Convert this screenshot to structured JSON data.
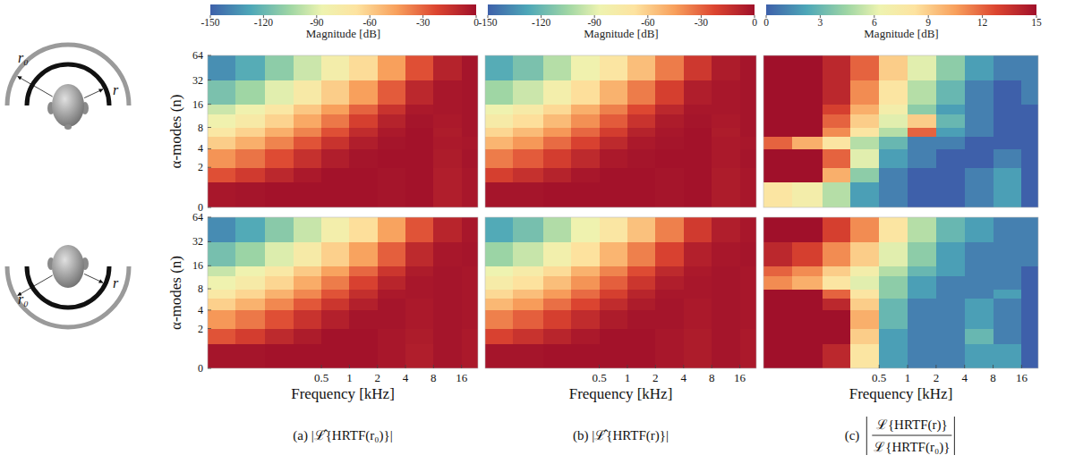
{
  "chart_data": [
    {
      "type": "heatmap",
      "log": true,
      "tick_labels": "y",
      "xlim": [
        0.03,
        24
      ],
      "ylim": [
        0,
        64
      ],
      "yticks": [
        0,
        2,
        4,
        8,
        16,
        32,
        64
      ],
      "ylabel": "α-modes (n)",
      "x_edges": [
        0.03,
        0.06,
        0.125,
        0.25,
        0.5,
        1,
        2,
        4,
        8,
        16,
        24
      ],
      "y_edges": [
        0,
        1,
        2,
        4,
        6,
        8,
        12,
        16,
        32,
        64
      ],
      "cells": [
        [
          -3,
          -2,
          -1,
          -1,
          -1,
          -1,
          -2,
          -1,
          -6,
          -3
        ],
        [
          -25,
          -18,
          -10,
          -4,
          -1,
          -1,
          -2,
          -1,
          -6,
          -3
        ],
        [
          -42,
          -34,
          -24,
          -14,
          -6,
          -2,
          -1,
          -1,
          -5,
          -2
        ],
        [
          -60,
          -50,
          -38,
          -26,
          -15,
          -6,
          -2,
          -1,
          -4,
          -3
        ],
        [
          -72,
          -62,
          -50,
          -38,
          -25,
          -12,
          -4,
          -1,
          -5,
          -2
        ],
        [
          -85,
          -75,
          -62,
          -48,
          -35,
          -20,
          -8,
          -2,
          -4,
          -2
        ],
        [
          -95,
          -85,
          -72,
          -58,
          -45,
          -30,
          -15,
          -4,
          -3,
          -2
        ],
        [
          -115,
          -105,
          -90,
          -75,
          -60,
          -45,
          -28,
          -10,
          -3,
          -2
        ],
        [
          -135,
          -125,
          -110,
          -95,
          -80,
          -65,
          -45,
          -25,
          -8,
          -2
        ]
      ]
    },
    {
      "type": "heatmap",
      "log": true,
      "tick_labels": false,
      "xlim": [
        0.03,
        24
      ],
      "ylim": [
        0,
        64
      ],
      "x_edges": [
        0.03,
        0.06,
        0.125,
        0.25,
        0.5,
        1,
        2,
        4,
        8,
        16,
        24
      ],
      "y_edges": [
        0,
        1,
        2,
        4,
        6,
        8,
        12,
        16,
        32,
        64
      ],
      "cells": [
        [
          -2,
          -2,
          -1,
          -1,
          -1,
          -1,
          -2,
          -1,
          -5,
          -3
        ],
        [
          -20,
          -14,
          -8,
          -3,
          -1,
          -1,
          -2,
          -1,
          -5,
          -3
        ],
        [
          -36,
          -28,
          -19,
          -11,
          -4,
          -2,
          -1,
          -1,
          -4,
          -2
        ],
        [
          -52,
          -43,
          -32,
          -21,
          -11,
          -4,
          -2,
          -1,
          -4,
          -3
        ],
        [
          -63,
          -54,
          -43,
          -31,
          -19,
          -8,
          -3,
          -1,
          -5,
          -2
        ],
        [
          -76,
          -66,
          -54,
          -41,
          -28,
          -15,
          -5,
          -2,
          -4,
          -2
        ],
        [
          -86,
          -76,
          -64,
          -50,
          -37,
          -23,
          -10,
          -3,
          -3,
          -2
        ],
        [
          -105,
          -95,
          -81,
          -66,
          -51,
          -36,
          -20,
          -6,
          -3,
          -2
        ],
        [
          -125,
          -115,
          -100,
          -85,
          -70,
          -55,
          -36,
          -17,
          -5,
          -2
        ]
      ]
    },
    {
      "type": "heatmap",
      "log": true,
      "tick_labels": false,
      "xlim": [
        0.03,
        24
      ],
      "ylim": [
        0,
        64
      ],
      "x_edges": [
        0.03,
        0.06,
        0.125,
        0.25,
        0.5,
        1,
        2,
        4,
        8,
        16,
        24
      ],
      "y_edges": [
        0,
        1,
        2,
        4,
        6,
        8,
        12,
        16,
        32,
        64
      ],
      "cells": [
        [
          8,
          7,
          5,
          2,
          1,
          0,
          0,
          1,
          2,
          0
        ],
        [
          15,
          15,
          10,
          4,
          1,
          0,
          0,
          1,
          2,
          0
        ],
        [
          15,
          15,
          12,
          6,
          2,
          1,
          0,
          0,
          1,
          0
        ],
        [
          12,
          10,
          8,
          5,
          3,
          1,
          1,
          0,
          0,
          0
        ],
        [
          15,
          15,
          11,
          8,
          5,
          12,
          2,
          1,
          0,
          0
        ],
        [
          15,
          15,
          12,
          9,
          6,
          9,
          3,
          1,
          0,
          0
        ],
        [
          15,
          15,
          13,
          10,
          7,
          4,
          2,
          1,
          0,
          0
        ],
        [
          15,
          15,
          14,
          11,
          8,
          5,
          3,
          1,
          0,
          1
        ],
        [
          15,
          15,
          14,
          12,
          9,
          6,
          4,
          2,
          1,
          1
        ]
      ]
    },
    {
      "type": "heatmap",
      "log": true,
      "tick_labels": true,
      "xlim": [
        0.03,
        24
      ],
      "ylim": [
        0,
        64
      ],
      "xticks": [
        0.5,
        1,
        2,
        4,
        8,
        16
      ],
      "yticks": [
        0,
        2,
        4,
        8,
        16,
        32,
        64
      ],
      "xlabel": "Frequency [kHz]",
      "ylabel": "α-modes (n)",
      "x_edges": [
        0.03,
        0.06,
        0.125,
        0.25,
        0.5,
        1,
        2,
        4,
        8,
        16,
        24
      ],
      "y_edges": [
        0,
        1,
        2,
        4,
        6,
        8,
        12,
        16,
        32,
        64
      ],
      "cells": [
        [
          -2,
          -2,
          -1,
          -1,
          -1,
          -1,
          -3,
          -6,
          -2,
          -4
        ],
        [
          -26,
          -19,
          -11,
          -5,
          -1,
          -1,
          -3,
          -5,
          -2,
          -4
        ],
        [
          -43,
          -35,
          -25,
          -15,
          -7,
          -2,
          -2,
          -4,
          -2,
          -3
        ],
        [
          -61,
          -51,
          -39,
          -27,
          -16,
          -7,
          -2,
          -4,
          -2,
          -3
        ],
        [
          -73,
          -63,
          -51,
          -39,
          -26,
          -13,
          -4,
          -3,
          -2,
          -3
        ],
        [
          -86,
          -76,
          -63,
          -49,
          -36,
          -21,
          -9,
          -3,
          -2,
          -3
        ],
        [
          -96,
          -86,
          -73,
          -59,
          -46,
          -31,
          -16,
          -5,
          -2,
          -3
        ],
        [
          -116,
          -106,
          -91,
          -76,
          -61,
          -46,
          -29,
          -11,
          -3,
          -2
        ],
        [
          -136,
          -126,
          -111,
          -96,
          -81,
          -66,
          -46,
          -26,
          -9,
          -3
        ]
      ]
    },
    {
      "type": "heatmap",
      "log": true,
      "tick_labels": "x",
      "xlim": [
        0.03,
        24
      ],
      "ylim": [
        0,
        64
      ],
      "xticks": [
        0.5,
        1,
        2,
        4,
        8,
        16
      ],
      "xlabel": "Frequency [kHz]",
      "x_edges": [
        0.03,
        0.06,
        0.125,
        0.25,
        0.5,
        1,
        2,
        4,
        8,
        16,
        24
      ],
      "y_edges": [
        0,
        1,
        2,
        4,
        6,
        8,
        12,
        16,
        32,
        64
      ],
      "cells": [
        [
          -2,
          -2,
          -1,
          -1,
          -1,
          -1,
          -3,
          -5,
          -2,
          -4
        ],
        [
          -21,
          -15,
          -9,
          -4,
          -1,
          -1,
          -3,
          -5,
          -2,
          -4
        ],
        [
          -37,
          -29,
          -20,
          -12,
          -5,
          -2,
          -2,
          -4,
          -2,
          -3
        ],
        [
          -53,
          -44,
          -33,
          -22,
          -12,
          -5,
          -2,
          -4,
          -2,
          -3
        ],
        [
          -64,
          -55,
          -44,
          -32,
          -20,
          -9,
          -3,
          -3,
          -2,
          -3
        ],
        [
          -77,
          -67,
          -55,
          -42,
          -29,
          -16,
          -6,
          -3,
          -2,
          -3
        ],
        [
          -87,
          -77,
          -65,
          -51,
          -38,
          -24,
          -11,
          -4,
          -2,
          -3
        ],
        [
          -106,
          -96,
          -82,
          -67,
          -52,
          -37,
          -21,
          -7,
          -3,
          -2
        ],
        [
          -126,
          -116,
          -101,
          -86,
          -71,
          -56,
          -37,
          -18,
          -6,
          -3
        ]
      ]
    },
    {
      "type": "heatmap",
      "log": true,
      "tick_labels": "x",
      "xlim": [
        0.03,
        24
      ],
      "ylim": [
        0,
        64
      ],
      "xticks": [
        0.5,
        1,
        2,
        4,
        8,
        16
      ],
      "xlabel": "Frequency [kHz]",
      "x_edges": [
        0.03,
        0.06,
        0.125,
        0.25,
        0.5,
        1,
        2,
        4,
        8,
        16,
        24
      ],
      "y_edges": [
        0,
        1,
        2,
        4,
        6,
        8,
        12,
        16,
        32,
        64
      ],
      "cells": [
        [
          15,
          15,
          14,
          8,
          2,
          1,
          1,
          2,
          2,
          0
        ],
        [
          15,
          15,
          15,
          9,
          2,
          1,
          1,
          3,
          1,
          0
        ],
        [
          15,
          15,
          15,
          10,
          3,
          1,
          1,
          2,
          1,
          0
        ],
        [
          15,
          15,
          14,
          9,
          3,
          1,
          1,
          2,
          1,
          0
        ],
        [
          15,
          15,
          12,
          8,
          4,
          2,
          1,
          1,
          2,
          0
        ],
        [
          11,
          10,
          8,
          6,
          4,
          2,
          1,
          1,
          1,
          0
        ],
        [
          12,
          11,
          9,
          7,
          5,
          3,
          2,
          1,
          1,
          0
        ],
        [
          14,
          13,
          11,
          9,
          6,
          4,
          2,
          1,
          1,
          1
        ],
        [
          15,
          15,
          13,
          11,
          8,
          5,
          3,
          2,
          1,
          1
        ]
      ]
    }
  ],
  "colorbars": [
    {
      "range": [
        -150,
        0
      ],
      "ticks": [
        -150,
        -120,
        -90,
        -60,
        -30,
        0
      ],
      "label": "Magnitude [dB]"
    },
    {
      "range": [
        -150,
        0
      ],
      "ticks": [
        -150,
        -120,
        -90,
        -60,
        -30,
        0
      ],
      "label": "Magnitude [dB]"
    },
    {
      "range": [
        0,
        15
      ],
      "ticks": [
        0,
        3,
        6,
        9,
        12,
        15
      ],
      "label": "Magnitude [dB]"
    }
  ],
  "captions": [
    "(a) |ℒ̂{HRTF(r₀)}|",
    "(b) |ℒ̂{HRTF(r)}|"
  ],
  "caption_c": {
    "prefix": "(c)",
    "numerator": "ℒ{HRTF(r)}",
    "denominator": "ℒ{HRTF(r₀)}"
  },
  "diagram": [
    {
      "outer": "r₀",
      "inner": "r"
    },
    {
      "outer": "r₀",
      "inner": "r"
    }
  ]
}
